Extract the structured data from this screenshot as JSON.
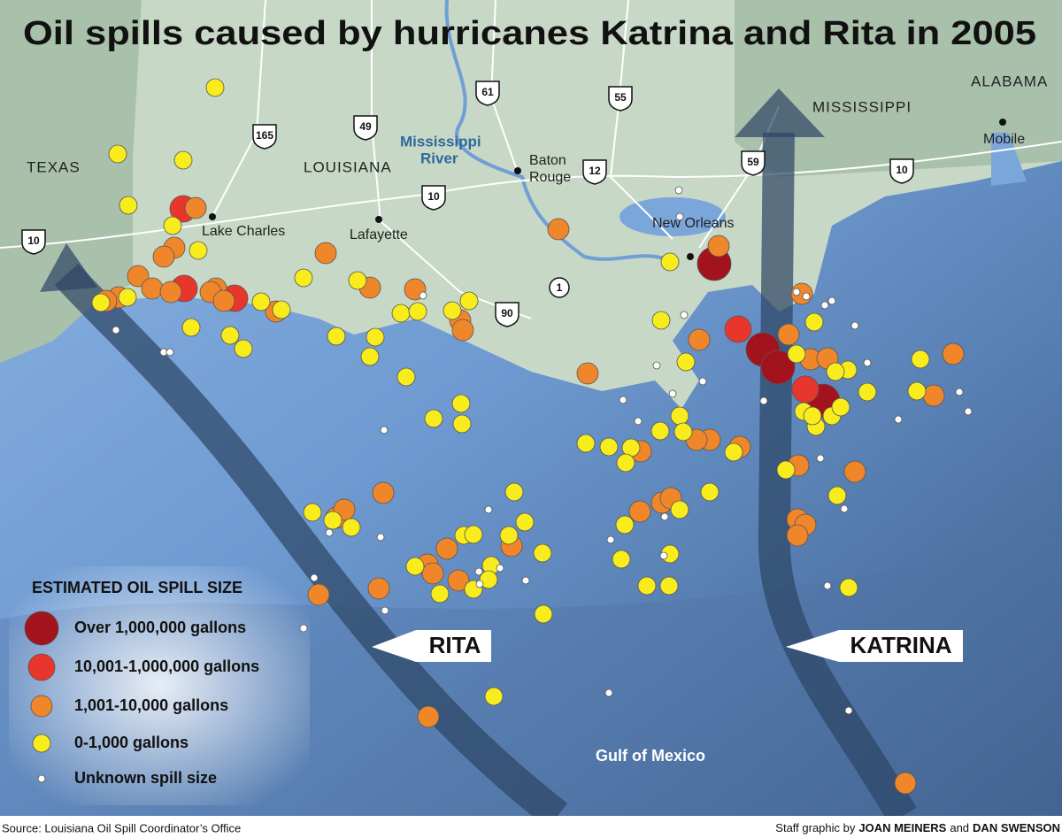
{
  "title": "Oil spills caused by hurricanes Katrina and Rita in 2005",
  "map": {
    "states": [
      "TEXAS",
      "LOUISIANA",
      "MISSISSIPPI",
      "ALABAMA"
    ],
    "cities": [
      "Lake Charles",
      "Lafayette",
      "Baton",
      "Rouge",
      "New Orleans",
      "Mobile"
    ],
    "water": [
      "Mississippi",
      "River",
      "Gulf of Mexico"
    ],
    "highways": [
      "10",
      "165",
      "49",
      "61",
      "55",
      "12",
      "10",
      "59",
      "10",
      "1",
      "90"
    ]
  },
  "hurricanes": [
    "RITA",
    "KATRINA"
  ],
  "legend": {
    "title": "ESTIMATED OIL SPILL SIZE",
    "items": [
      "Over 1,000,000 gallons",
      "10,001-1,000,000 gallons",
      "1,001-10,000 gallons",
      "0-1,000 gallons",
      "Unknown spill size"
    ]
  },
  "footer": {
    "source": "Source: Louisiana Oil Spill Coordinator’s Office",
    "credit": [
      "Staff graphic by",
      "JOAN MEINERS",
      "and",
      "DAN SWENSON"
    ]
  }
}
